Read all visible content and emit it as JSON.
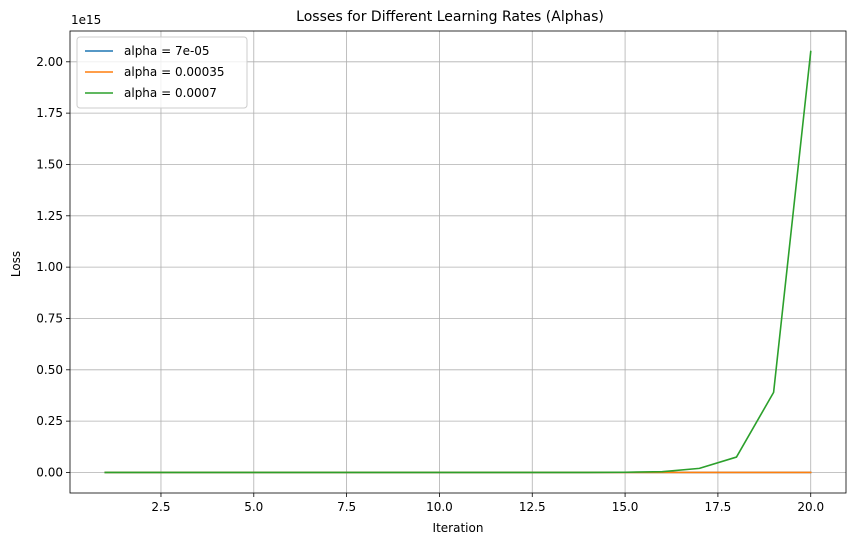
{
  "chart_data": {
    "type": "line",
    "title": "Losses for Different Learning Rates (Alphas)",
    "xlabel": "Iteration",
    "ylabel": "Loss",
    "y_offset_label": "1e15",
    "xlim": [
      0.05,
      20.95
    ],
    "ylim": [
      -0.1,
      2.15
    ],
    "x_ticks": [
      2.5,
      5.0,
      7.5,
      10.0,
      12.5,
      15.0,
      17.5,
      20.0
    ],
    "x_tick_labels": [
      "2.5",
      "5.0",
      "7.5",
      "10.0",
      "12.5",
      "15.0",
      "17.5",
      "20.0"
    ],
    "y_ticks": [
      0.0,
      0.25,
      0.5,
      0.75,
      1.0,
      1.25,
      1.5,
      1.75,
      2.0
    ],
    "y_tick_labels": [
      "0.00",
      "0.25",
      "0.50",
      "0.75",
      "1.00",
      "1.25",
      "1.50",
      "1.75",
      "2.00"
    ],
    "grid": true,
    "legend_position": "top-left",
    "x": [
      1,
      2,
      3,
      4,
      5,
      6,
      7,
      8,
      9,
      10,
      11,
      12,
      13,
      14,
      15,
      16,
      17,
      18,
      19,
      20
    ],
    "series": [
      {
        "name": "alpha = 7e-05",
        "color": "#1f77b4",
        "values": [
          0,
          0,
          0,
          0,
          0,
          0,
          0,
          0,
          0,
          0,
          0,
          0,
          0,
          0,
          0,
          0,
          0,
          0,
          0,
          0
        ]
      },
      {
        "name": "alpha = 0.00035",
        "color": "#ff7f0e",
        "values": [
          0,
          0,
          0,
          0,
          0,
          0,
          0,
          0,
          0,
          0,
          0,
          0,
          0,
          0,
          0,
          0,
          0,
          0,
          0,
          0
        ]
      },
      {
        "name": "alpha = 0.0007",
        "color": "#2ca02c",
        "values": [
          0,
          0,
          0,
          0,
          0,
          0,
          0,
          0,
          0,
          0,
          0,
          0,
          0,
          0,
          0.001,
          0.004,
          0.02,
          0.075,
          0.39,
          2.05
        ]
      }
    ]
  }
}
